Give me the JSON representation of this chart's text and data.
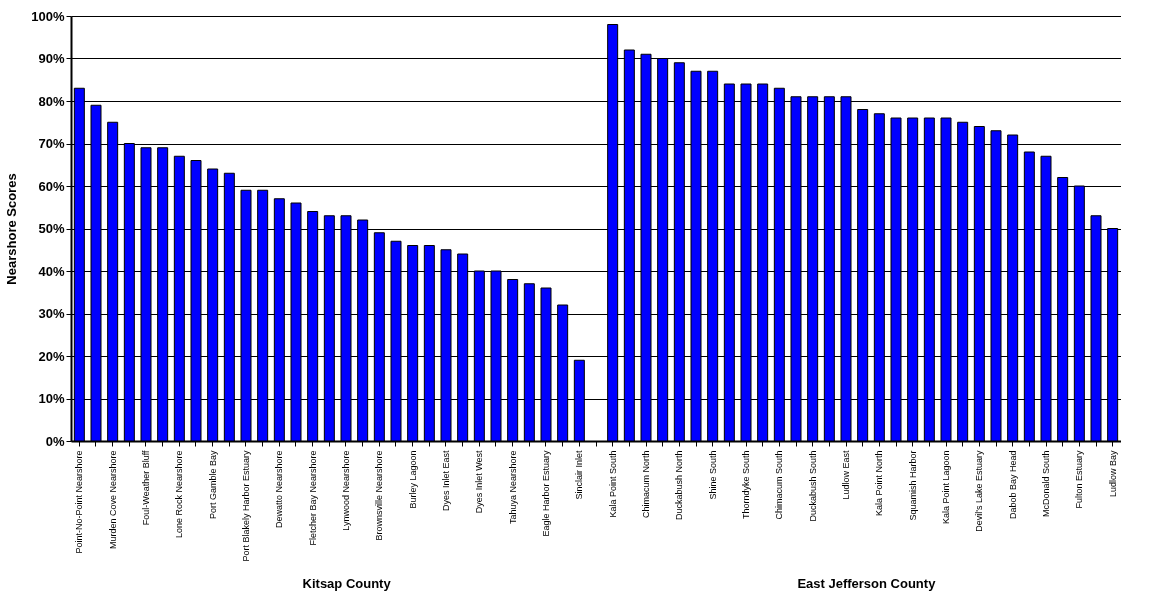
{
  "chart_data": {
    "type": "bar",
    "ylabel": "Nearshore Scores",
    "categories": [
      "Point-No-Point Nearshore",
      null,
      "Murden Cove Nearshore",
      null,
      "Foul-Weather Bluff",
      null,
      "Lone Rock Nearshore",
      null,
      "Port Gamble Bay",
      null,
      "Port Blakely Harbor Estuary",
      null,
      "Dewatto Nearshore",
      null,
      "Fletcher Bay Nearshore",
      null,
      "Lynwood Nearshore",
      null,
      "Brownsville Nearshore",
      null,
      "Burley Lagoon",
      null,
      "Dyes Inlet East",
      null,
      "Dyes Inlet West",
      null,
      "Tahuya Nearshore",
      null,
      "Eagle Harbor Estuary",
      null,
      "Sinclair Inlet",
      null,
      "Kala Point South",
      null,
      "Chimacum North",
      null,
      "Duckabush North",
      null,
      "Shine South",
      null,
      "Thorndyke South",
      null,
      "Chimacum South",
      null,
      "Duckabush South",
      null,
      "Ludlow East",
      null,
      "Kala Point North",
      null,
      "Squamish Harbor",
      null,
      "Kala Point Lagoon",
      null,
      "Devil's Lake Estuary",
      null,
      "Dabob Bay Head",
      null,
      "McDonald South",
      null,
      "Fulton Estuary",
      null,
      "Ludlow Bay"
    ],
    "values": [
      83,
      79,
      75,
      70,
      69,
      69,
      67,
      66,
      64,
      63,
      59,
      59,
      57,
      56,
      54,
      53,
      53,
      52,
      49,
      47,
      46,
      46,
      45,
      44,
      40,
      40,
      38,
      37,
      36,
      32,
      19,
      null,
      98,
      92,
      91,
      90,
      89,
      87,
      87,
      84,
      84,
      84,
      83,
      81,
      81,
      81,
      81,
      78,
      77,
      76,
      76,
      76,
      76,
      75,
      74,
      73,
      72,
      68,
      67,
      62,
      60,
      53,
      50
    ],
    "color": "#0000ff",
    "ylim": [
      0,
      100
    ],
    "yticks": [
      {
        "value": 0,
        "label": "0%"
      },
      {
        "value": 10,
        "label": "10%"
      },
      {
        "value": 20,
        "label": "20%"
      },
      {
        "value": 30,
        "label": "30%"
      },
      {
        "value": 40,
        "label": "40%"
      },
      {
        "value": 50,
        "label": "50%"
      },
      {
        "value": 60,
        "label": "60%"
      },
      {
        "value": 70,
        "label": "70%"
      },
      {
        "value": 80,
        "label": "80%"
      },
      {
        "value": 90,
        "label": "90%"
      },
      {
        "value": 100,
        "label": "100%"
      }
    ],
    "grid": "y",
    "annotations": [
      "Kitsap County",
      "East Jefferson County"
    ]
  }
}
